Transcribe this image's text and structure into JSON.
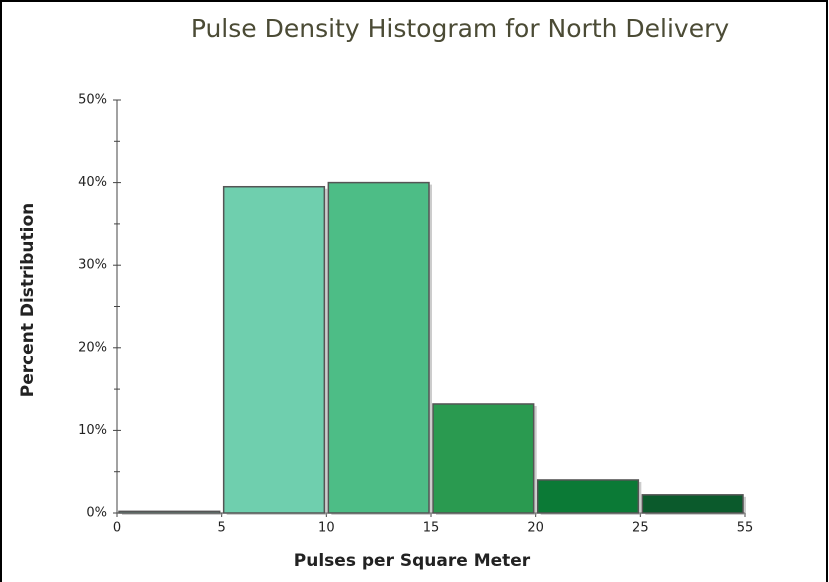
{
  "chart_data": {
    "type": "histogram",
    "title": "Pulse Density Histogram for North Delivery",
    "xlabel": "Pulses per Square Meter",
    "ylabel": "Percent Distribution",
    "bins": [
      0,
      5,
      10,
      15,
      20,
      25,
      55
    ],
    "values": [
      0.2,
      39.5,
      40,
      13.2,
      4,
      2.2
    ],
    "colors": [
      "#7fd6bd",
      "#6fcfae",
      "#4dbd86",
      "#2a9a50",
      "#0b7a36",
      "#0b5a2c"
    ],
    "ylim": [
      0,
      50
    ],
    "yticks": [
      {
        "value": 0,
        "label": "0%"
      },
      {
        "value": 10,
        "label": "10%"
      },
      {
        "value": 20,
        "label": "20%"
      },
      {
        "value": 30,
        "label": "30%"
      },
      {
        "value": 40,
        "label": "40%"
      },
      {
        "value": 50,
        "label": "50%"
      }
    ]
  }
}
